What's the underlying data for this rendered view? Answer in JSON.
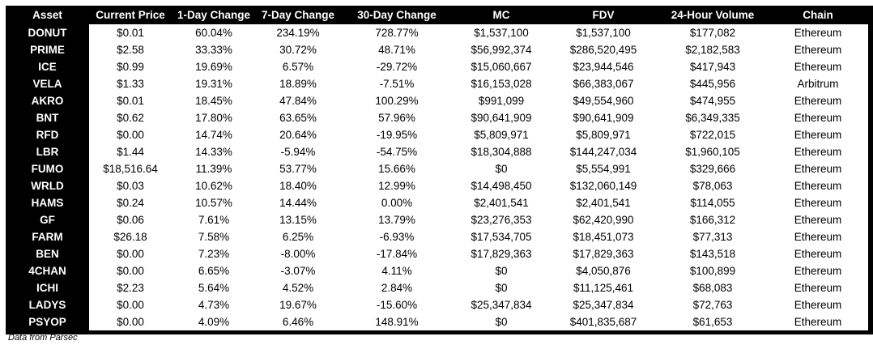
{
  "colors": {
    "header_bg": "#000000",
    "header_text": "#ffffff",
    "body_bg": "#ffffff",
    "body_text": "#000000"
  },
  "footer": {
    "source_note": "Data from Parsec"
  },
  "chart_data": {
    "type": "table",
    "title": "",
    "columns": [
      "Asset",
      "Current Price",
      "1-Day Change",
      "7-Day Change",
      "30-Day Change",
      "MC",
      "FDV",
      "24-Hour Volume",
      "Chain"
    ],
    "rows": [
      [
        "DONUT",
        "$0.01",
        "60.04%",
        "234.19%",
        "728.77%",
        "$1,537,100",
        "$1,537,100",
        "$177,082",
        "Ethereum"
      ],
      [
        "PRIME",
        "$2.58",
        "33.33%",
        "30.72%",
        "48.71%",
        "$56,992,374",
        "$286,520,495",
        "$2,182,583",
        "Ethereum"
      ],
      [
        "ICE",
        "$0.99",
        "19.69%",
        "6.57%",
        "-29.72%",
        "$15,060,667",
        "$23,944,546",
        "$417,943",
        "Ethereum"
      ],
      [
        "VELA",
        "$1.33",
        "19.31%",
        "18.89%",
        "-7.51%",
        "$16,153,028",
        "$66,383,067",
        "$445,956",
        "Arbitrum"
      ],
      [
        "AKRO",
        "$0.01",
        "18.45%",
        "47.84%",
        "100.29%",
        "$991,099",
        "$49,554,960",
        "$474,955",
        "Ethereum"
      ],
      [
        "BNT",
        "$0.62",
        "17.80%",
        "63.65%",
        "57.96%",
        "$90,641,909",
        "$90,641,909",
        "$6,349,335",
        "Ethereum"
      ],
      [
        "RFD",
        "$0.00",
        "14.74%",
        "20.64%",
        "-19.95%",
        "$5,809,971",
        "$5,809,971",
        "$722,015",
        "Ethereum"
      ],
      [
        "LBR",
        "$1.44",
        "14.33%",
        "-5.94%",
        "-54.75%",
        "$18,304,888",
        "$144,247,034",
        "$1,960,105",
        "Ethereum"
      ],
      [
        "FUMO",
        "$18,516.64",
        "11.39%",
        "53.77%",
        "15.66%",
        "$0",
        "$5,554,991",
        "$329,666",
        "Ethereum"
      ],
      [
        "WRLD",
        "$0.03",
        "10.62%",
        "18.40%",
        "12.99%",
        "$14,498,450",
        "$132,060,149",
        "$78,063",
        "Ethereum"
      ],
      [
        "HAMS",
        "$0.24",
        "10.57%",
        "14.44%",
        "0.00%",
        "$2,401,541",
        "$2,401,541",
        "$114,055",
        "Ethereum"
      ],
      [
        "GF",
        "$0.06",
        "7.61%",
        "13.15%",
        "13.79%",
        "$23,276,353",
        "$62,420,990",
        "$166,312",
        "Ethereum"
      ],
      [
        "FARM",
        "$26.18",
        "7.58%",
        "6.25%",
        "-6.93%",
        "$17,534,705",
        "$18,451,073",
        "$77,313",
        "Ethereum"
      ],
      [
        "BEN",
        "$0.00",
        "7.23%",
        "-8.00%",
        "-17.84%",
        "$17,829,363",
        "$17,829,363",
        "$143,518",
        "Ethereum"
      ],
      [
        "4CHAN",
        "$0.00",
        "6.65%",
        "-3.07%",
        "4.11%",
        "$0",
        "$4,050,876",
        "$100,899",
        "Ethereum"
      ],
      [
        "ICHI",
        "$2.23",
        "5.64%",
        "4.52%",
        "2.84%",
        "$0",
        "$11,125,461",
        "$68,083",
        "Ethereum"
      ],
      [
        "LADYS",
        "$0.00",
        "4.73%",
        "19.67%",
        "-15.60%",
        "$25,347,834",
        "$25,347,834",
        "$72,763",
        "Ethereum"
      ],
      [
        "PSYOP",
        "$0.00",
        "4.09%",
        "6.46%",
        "148.91%",
        "$0",
        "$401,835,687",
        "$61,653",
        "Ethereum"
      ]
    ]
  }
}
